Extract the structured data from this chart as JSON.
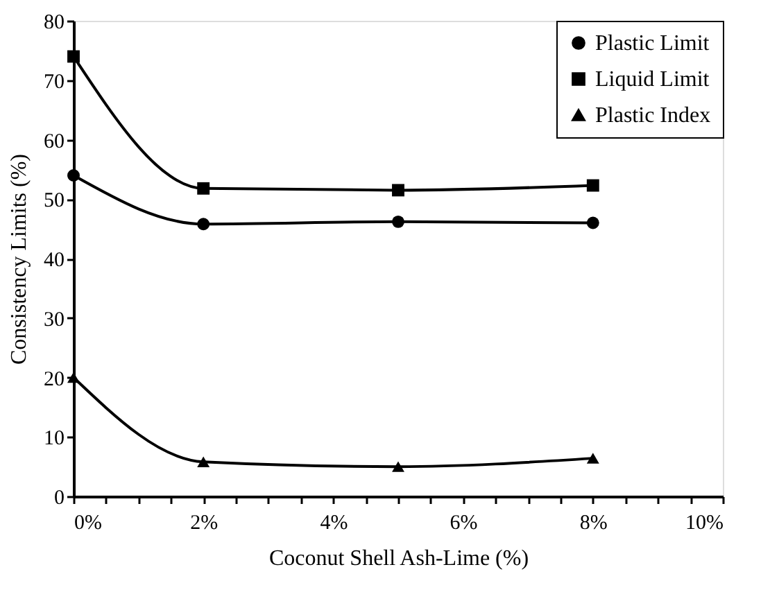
{
  "chart_data": {
    "type": "line",
    "xlabel": "Coconut Shell Ash-Lime (%)",
    "ylabel": "Consistency Limits (%)",
    "xlim": [
      0,
      10
    ],
    "ylim": [
      0,
      80
    ],
    "xticks": [
      {
        "value": 0,
        "label": "0%"
      },
      {
        "value": 0.5,
        "label": null
      },
      {
        "value": 1,
        "label": null
      },
      {
        "value": 1.5,
        "label": null
      },
      {
        "value": 2,
        "label": "2%"
      },
      {
        "value": 2.5,
        "label": null
      },
      {
        "value": 3,
        "label": null
      },
      {
        "value": 3.5,
        "label": null
      },
      {
        "value": 4,
        "label": "4%"
      },
      {
        "value": 4.5,
        "label": null
      },
      {
        "value": 5,
        "label": null
      },
      {
        "value": 5.5,
        "label": null
      },
      {
        "value": 6,
        "label": "6%"
      },
      {
        "value": 6.5,
        "label": null
      },
      {
        "value": 7,
        "label": null
      },
      {
        "value": 7.5,
        "label": null
      },
      {
        "value": 8,
        "label": "8%"
      },
      {
        "value": 8.5,
        "label": null
      },
      {
        "value": 9,
        "label": null
      },
      {
        "value": 9.5,
        "label": null
      },
      {
        "value": 10,
        "label": "10%"
      }
    ],
    "yticks": [
      0,
      10,
      20,
      30,
      40,
      50,
      60,
      70,
      80
    ],
    "x": [
      0,
      2,
      5,
      8
    ],
    "series": [
      {
        "name": "Plastic Limit",
        "color": "#000000",
        "marker": "circle",
        "values": [
          54,
          45.8,
          46.2,
          46.0
        ]
      },
      {
        "name": "Liquid Limit",
        "color": "#000000",
        "marker": "square",
        "values": [
          74,
          51.8,
          51.5,
          52.3
        ]
      },
      {
        "name": "Plastic Index",
        "color": "#000000",
        "marker": "triangle",
        "values": [
          20,
          5.8,
          5.0,
          6.4
        ]
      }
    ],
    "grid": false,
    "legend": "top right",
    "line_style": "solid"
  }
}
